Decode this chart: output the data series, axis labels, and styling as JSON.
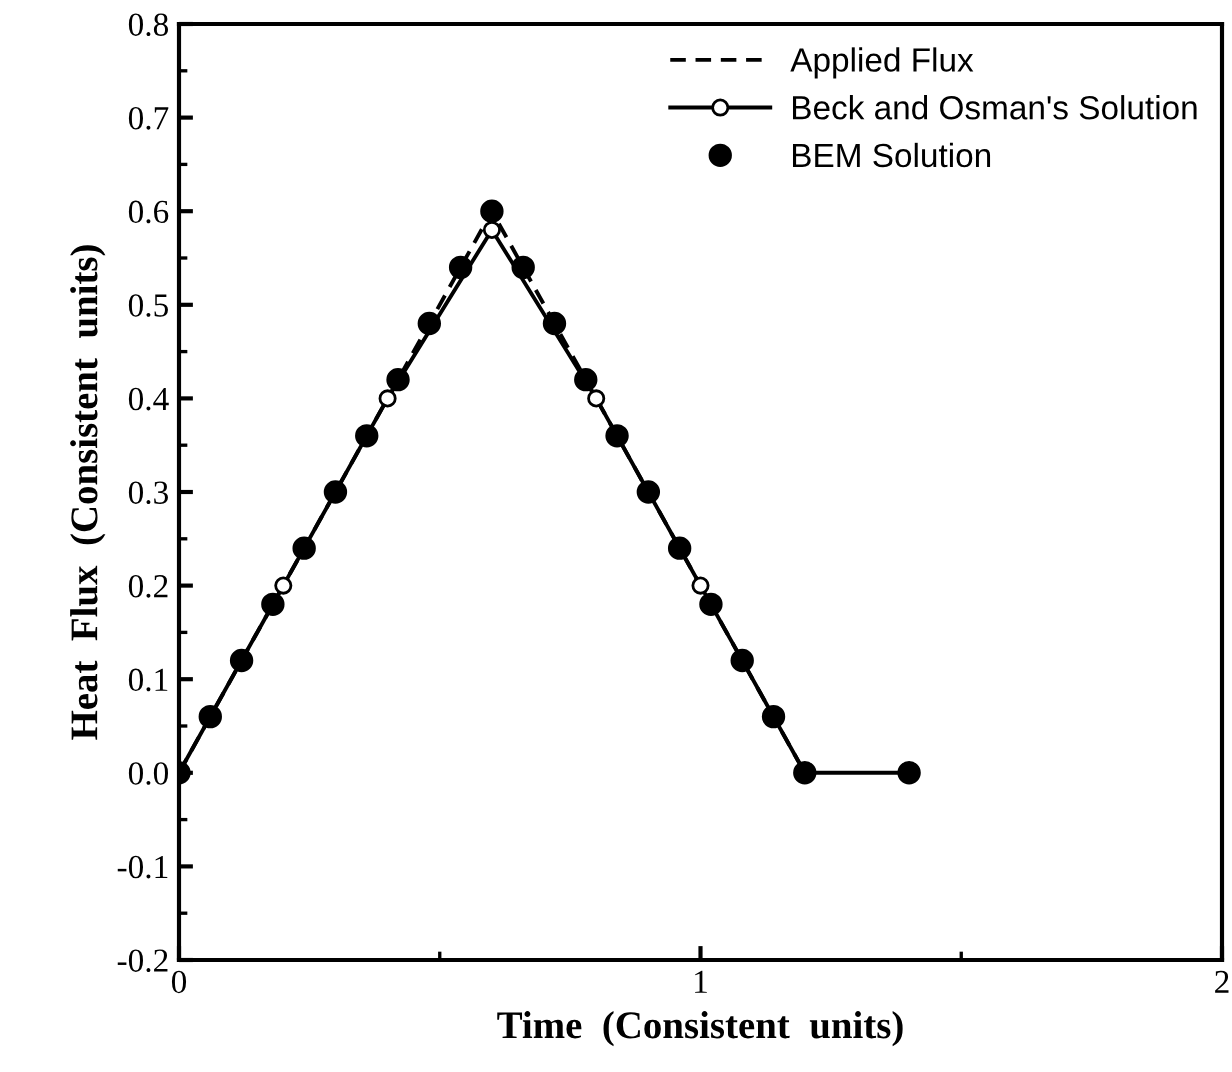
{
  "chart_data": {
    "type": "line",
    "xlabel": "Time  (Consistent  units)",
    "ylabel": "Heat  Flux  (Consistent  units)",
    "xlim": [
      0,
      2
    ],
    "xticks": [
      0,
      1,
      2
    ],
    "ylim": [
      -0.2,
      0.8
    ],
    "yticks": [
      {
        "value": -0.2,
        "label": "-0.2"
      },
      {
        "value": -0.1,
        "label": "-0.1"
      },
      {
        "value": 0,
        "label": "0.0"
      },
      {
        "value": 0.1,
        "label": "0.1"
      },
      {
        "value": 0.2,
        "label": "0.2"
      },
      {
        "value": 0.3,
        "label": "0.3"
      },
      {
        "value": 0.4,
        "label": "0.4"
      },
      {
        "value": 0.5,
        "label": "0.5"
      },
      {
        "value": 0.6,
        "label": "0.6"
      },
      {
        "value": 0.7,
        "label": "0.7"
      },
      {
        "value": 0.8,
        "label": "0.8"
      }
    ],
    "grid": false,
    "legend": "top right",
    "series": [
      {
        "name": "Applied Flux",
        "color": "#000000",
        "line_style": "dashed",
        "x": [
          0,
          0.6,
          1.2
        ],
        "values": [
          0,
          0.6,
          0
        ]
      },
      {
        "name": "Beck and Osman's Solution",
        "color": "#000000",
        "line_style": "solid",
        "marker": "circle",
        "x": [
          0,
          0.2,
          0.4,
          0.6,
          0.8,
          1.0,
          1.2,
          1.4
        ],
        "values": [
          0,
          0.2,
          0.4,
          0.58,
          0.4,
          0.2,
          0,
          0
        ]
      },
      {
        "name": "BEM Solution",
        "type": "scatter",
        "color": "#000000",
        "marker": "circle",
        "x": [
          0,
          0.06,
          0.12,
          0.18,
          0.24,
          0.3,
          0.36,
          0.42,
          0.48,
          0.54,
          0.6,
          0.66,
          0.72,
          0.78,
          0.84,
          0.9,
          0.96,
          1.02,
          1.08,
          1.14,
          1.2,
          1.4
        ],
        "values": [
          0,
          0.06,
          0.12,
          0.18,
          0.24,
          0.3,
          0.36,
          0.42,
          0.48,
          0.54,
          0.6,
          0.54,
          0.48,
          0.42,
          0.36,
          0.3,
          0.24,
          0.18,
          0.12,
          0.06,
          0,
          0
        ]
      }
    ]
  }
}
